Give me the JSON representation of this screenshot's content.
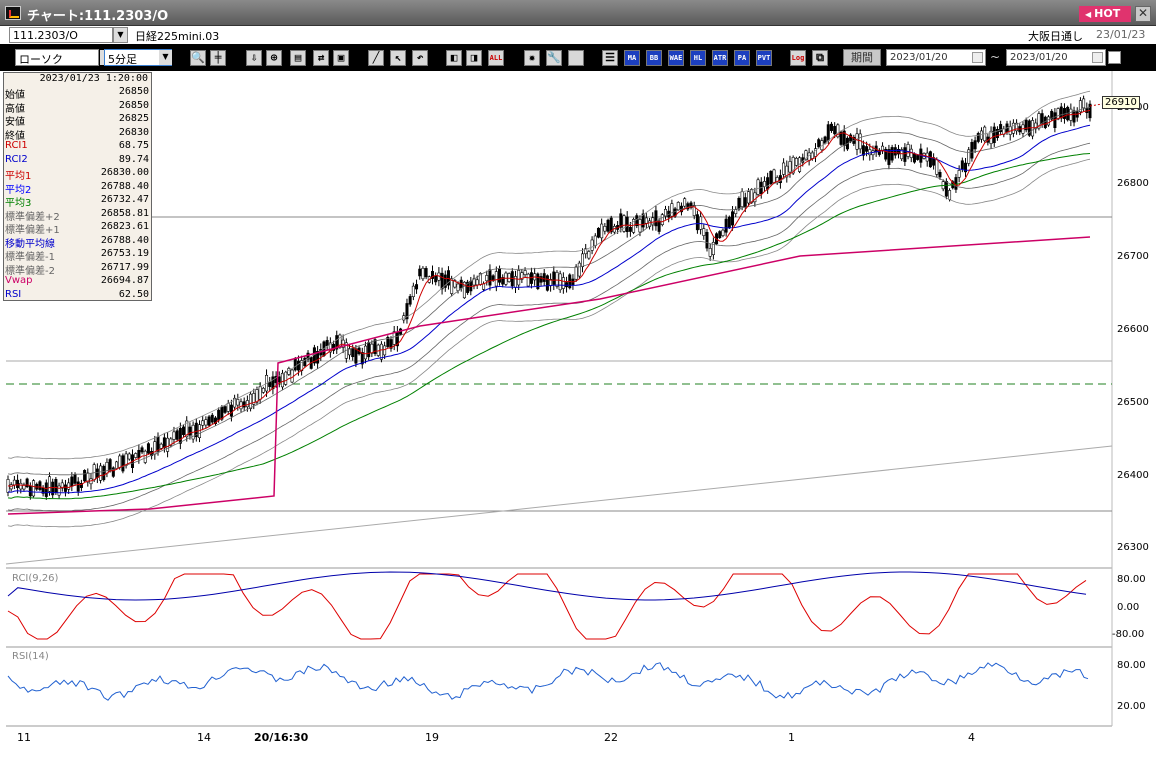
{
  "window": {
    "title": "チャート:111.2303/O",
    "hot_label": "HOT",
    "close_glyph": "✕"
  },
  "symbol_row": {
    "symbol_value": "111.2303/O",
    "symbol_name": "日経225mini.03",
    "market": "大阪日通し",
    "date": "23/01/23"
  },
  "toolbar": {
    "chart_type": "ローソク",
    "interval": "5分足",
    "buttons": [
      "MA",
      "BB",
      "WAE",
      "HL",
      "ATR",
      "PA",
      "PVT",
      "Log",
      "ALL"
    ],
    "period_label": "期間",
    "date_from": "2023/01/20",
    "date_to": "2023/01/20",
    "tilde": "~"
  },
  "data_panel": {
    "datetime": "2023/01/23 1:20:00",
    "rows": [
      {
        "label": "始値",
        "value": "26850",
        "color": "#000000"
      },
      {
        "label": "高値",
        "value": "26850",
        "color": "#000000"
      },
      {
        "label": "安値",
        "value": "26825",
        "color": "#000000"
      },
      {
        "label": "終値",
        "value": "26830",
        "color": "#000000"
      },
      {
        "label": "RCI1",
        "value": "68.75",
        "color": "#cc0000"
      },
      {
        "label": "RCI2",
        "value": "89.74",
        "color": "#0000cc"
      },
      {
        "label": "平均1",
        "value": "26830.00",
        "color": "#cc0000"
      },
      {
        "label": "平均2",
        "value": "26788.40",
        "color": "#0000ff"
      },
      {
        "label": "平均3",
        "value": "26732.47",
        "color": "#008000"
      },
      {
        "label": "標準偏差+2",
        "value": "26858.81",
        "color": "#666666"
      },
      {
        "label": "標準偏差+1",
        "value": "26823.61",
        "color": "#666666"
      },
      {
        "label": "移動平均線",
        "value": "26788.40",
        "color": "#0000cc"
      },
      {
        "label": "標準偏差-1",
        "value": "26753.19",
        "color": "#666666"
      },
      {
        "label": "標準偏差-2",
        "value": "26717.99",
        "color": "#666666"
      },
      {
        "label": "Vwap",
        "value": "26694.87",
        "color": "#cc0066"
      },
      {
        "label": "RSI",
        "value": "62.50",
        "color": "#0000cc"
      }
    ]
  },
  "price_axis": {
    "labels": [
      "26900",
      "26800",
      "26700",
      "26600",
      "26500",
      "26400",
      "26300"
    ],
    "current_price": "26910"
  },
  "rci_panel": {
    "label": "RCI(9,26)",
    "axis_labels": [
      "80.00",
      "0.00",
      "-80.00"
    ]
  },
  "rsi_panel": {
    "label": "RSI(14)",
    "axis_labels": [
      "80.00",
      "20.00"
    ]
  },
  "date_axis": {
    "labels": [
      "11",
      "14",
      "20/16:30",
      "19",
      "22",
      "1",
      "4"
    ]
  },
  "colors": {
    "sma_short": "#cc0000",
    "sma_mid": "#0000cc",
    "sma_long": "#008000",
    "vwap": "#cc0066",
    "bands": "#555555",
    "hot": "#e0336e"
  }
}
